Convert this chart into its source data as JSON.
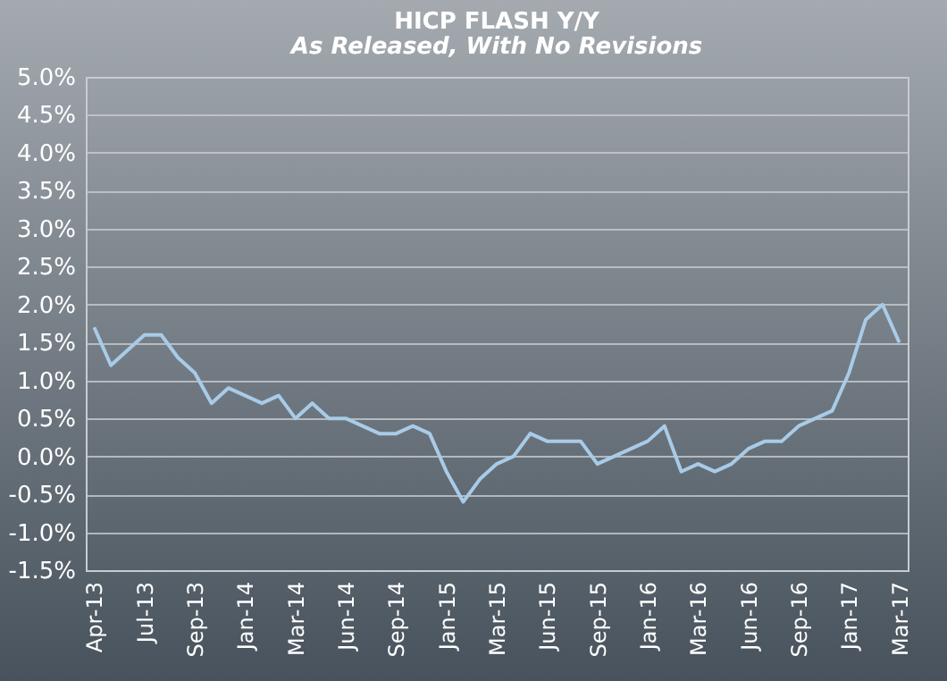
{
  "chart_data": {
    "type": "line",
    "title": "HICP FLASH Y/Y",
    "subtitle": "As Released, With No Revisions",
    "categories": [
      "Apr-13",
      null,
      null,
      "Jul-13",
      null,
      null,
      "Sep-13",
      null,
      null,
      "Jan-14",
      null,
      null,
      "Mar-14",
      null,
      null,
      "Jun-14",
      null,
      null,
      "Sep-14",
      null,
      null,
      "Jan-15",
      null,
      null,
      "Mar-15",
      null,
      null,
      "Jun-15",
      null,
      null,
      "Sep-15",
      null,
      null,
      "Jan-16",
      null,
      null,
      "Mar-16",
      null,
      null,
      "Jun-16",
      null,
      null,
      "Sep-16",
      null,
      null,
      "Jan-17",
      null,
      null,
      "Mar-17"
    ],
    "series": [
      {
        "color": "#a8cbe8",
        "values": [
          1.7,
          1.2,
          1.4,
          1.6,
          1.6,
          1.3,
          1.1,
          0.7,
          0.9,
          0.8,
          0.7,
          0.8,
          0.5,
          0.7,
          0.5,
          0.5,
          0.4,
          0.3,
          0.3,
          0.4,
          0.3,
          -0.2,
          -0.6,
          -0.3,
          -0.1,
          0.0,
          0.3,
          0.2,
          0.2,
          0.2,
          -0.1,
          0.0,
          0.1,
          0.2,
          0.4,
          -0.2,
          -0.1,
          -0.2,
          -0.1,
          0.1,
          0.2,
          0.2,
          0.4,
          0.5,
          0.6,
          1.1,
          1.8,
          2.0,
          1.5
        ]
      }
    ],
    "ylim": [
      -1.5,
      5.0
    ],
    "yticks": [
      {
        "value": -1.5,
        "label": "-1.5%"
      },
      {
        "value": -1.0,
        "label": "-1.0%"
      },
      {
        "value": -0.5,
        "label": "-0.5%"
      },
      {
        "value": 0.0,
        "label": "0.0%"
      },
      {
        "value": 0.5,
        "label": "0.5%"
      },
      {
        "value": 1.0,
        "label": "1.0%"
      },
      {
        "value": 1.5,
        "label": "1.5%"
      },
      {
        "value": 2.0,
        "label": "2.0%"
      },
      {
        "value": 2.5,
        "label": "2.5%"
      },
      {
        "value": 3.0,
        "label": "3.0%"
      },
      {
        "value": 3.5,
        "label": "3.5%"
      },
      {
        "value": 4.0,
        "label": "4.0%"
      },
      {
        "value": 4.5,
        "label": "4.5%"
      },
      {
        "value": 5.0,
        "label": "5.0%"
      }
    ],
    "grid": "y",
    "marker": "none",
    "line_style": "solid"
  }
}
